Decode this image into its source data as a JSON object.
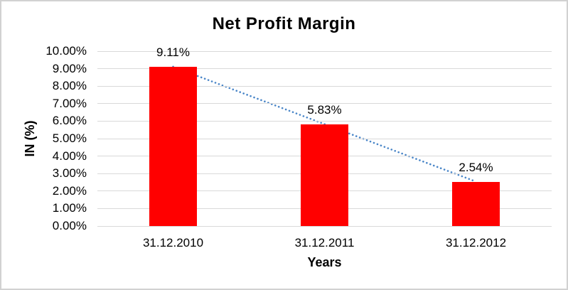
{
  "chart_data": {
    "type": "bar",
    "title": "Net Profit Margin",
    "xlabel": "Years",
    "ylabel": "IN (%)",
    "categories": [
      "31.12.2010",
      "31.12.2011",
      "31.12.2012"
    ],
    "values": [
      9.11,
      5.83,
      2.54
    ],
    "data_labels": [
      "9.11%",
      "5.83%",
      "2.54%"
    ],
    "ylim": [
      0,
      10
    ],
    "ytick_labels": [
      "0.00%",
      "1.00%",
      "2.00%",
      "3.00%",
      "4.00%",
      "5.00%",
      "6.00%",
      "7.00%",
      "8.00%",
      "9.00%",
      "10.00%"
    ],
    "grid": true,
    "legend": "none",
    "trendline": {
      "type": "linear",
      "style": "dotted"
    },
    "colors": {
      "bar": "#ff0000",
      "trendline": "#4a86c8",
      "gridline": "#d9d9d9",
      "text": "#000000",
      "border": "#d1d1d1",
      "background": "#ffffff"
    }
  }
}
